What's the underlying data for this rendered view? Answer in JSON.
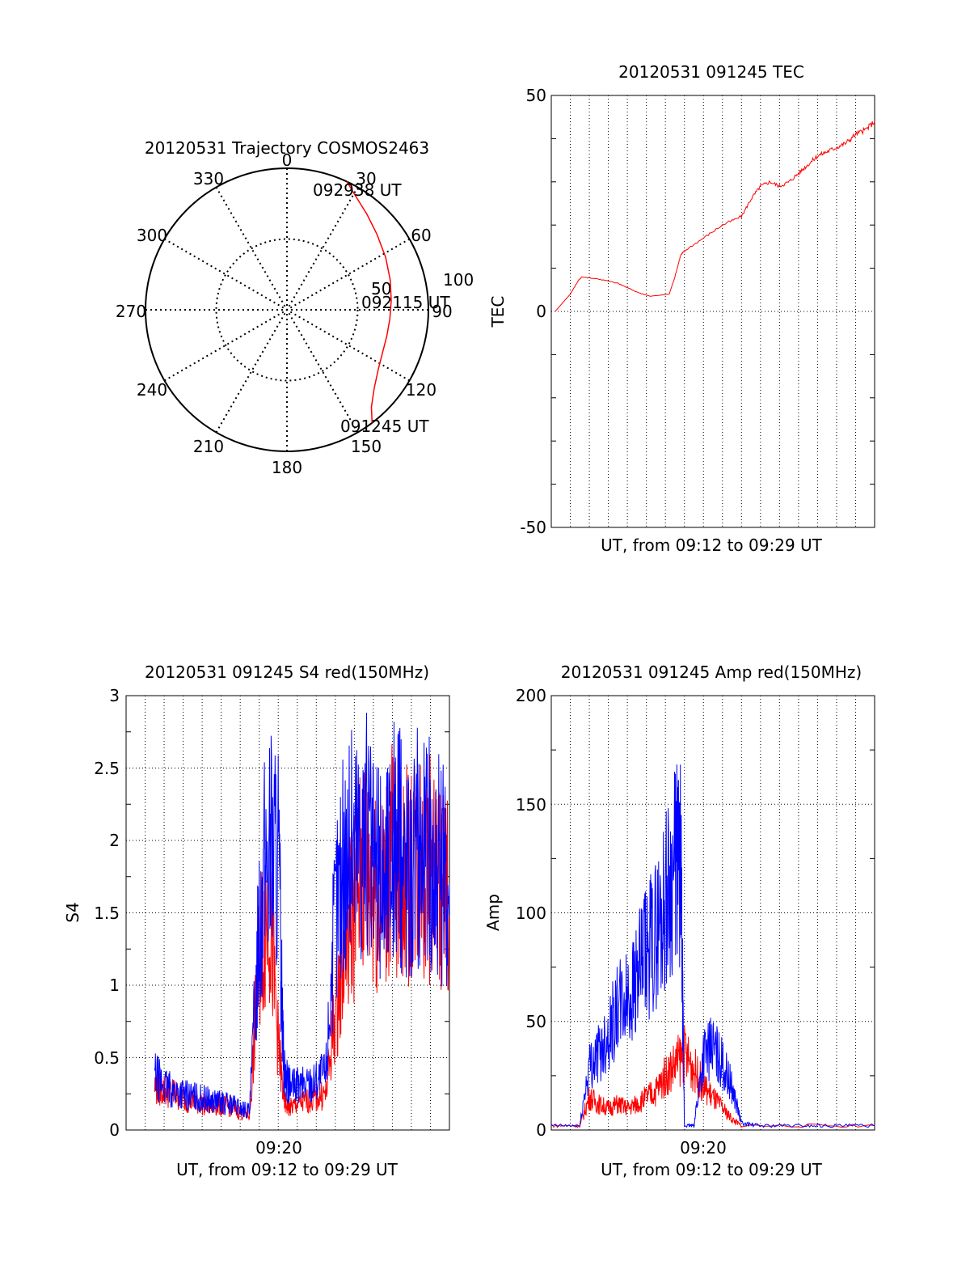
{
  "colors": {
    "red": "#ff0000",
    "blue": "#0000ff",
    "axis": "#000000",
    "grid": "#000000"
  },
  "chart_data": [
    {
      "type": "polar",
      "title": "20120531 Trajectory COSMOS2463",
      "azimuth_labels": [
        "0",
        "30",
        "60",
        "90",
        "120",
        "150",
        "180",
        "210",
        "240",
        "270",
        "300",
        "330"
      ],
      "radius_labels": [
        "50",
        "100"
      ],
      "rlim": [
        0,
        100
      ],
      "grid": true,
      "series": [
        {
          "color": "#ff0000",
          "azimuth_deg": [
            143,
            139,
            132,
            123,
            114,
            105,
            95,
            85,
            74,
            62,
            50,
            40,
            31,
            25
          ],
          "radius": [
            100,
            91,
            83,
            77,
            74,
            73,
            73,
            74,
            76,
            79,
            83,
            88,
            94,
            100
          ]
        }
      ],
      "annotations": [
        {
          "text": "092938 UT",
          "azimuth_deg": 25,
          "radius": 100
        },
        {
          "text": "092115 UT",
          "azimuth_deg": 90,
          "radius": 73
        },
        {
          "text": "091245 UT",
          "azimuth_deg": 143,
          "radius": 100
        }
      ]
    },
    {
      "type": "line",
      "title": "20120531 091245 TEC",
      "xlabel": "UT, from 09:12 to 09:29 UT",
      "ylabel": "TEC",
      "xlim": [
        0,
        17
      ],
      "ylim": [
        -50,
        50
      ],
      "yticks": [
        "50",
        "0",
        "-50"
      ],
      "grid": true,
      "series": [
        {
          "color": "#ff0000",
          "x": [
            0.2,
            0.6,
            1.0,
            1.4,
            1.6,
            2.5,
            3.5,
            4.5,
            5.2,
            6.2,
            6.5,
            6.8,
            7.0,
            8.0,
            9.0,
            10.0,
            10.5,
            11.0,
            11.5,
            12.0,
            12.5,
            13.0,
            13.5,
            14.0,
            14.5,
            15.0,
            15.5,
            16.0,
            16.5,
            17.0
          ],
          "y": [
            0,
            2,
            4,
            7,
            8,
            7.5,
            6.5,
            4.5,
            3.5,
            4,
            8,
            13,
            14,
            17,
            20,
            22,
            26,
            29,
            30,
            29,
            30,
            32,
            34,
            36,
            37,
            38,
            39,
            41,
            42,
            44
          ]
        }
      ]
    },
    {
      "type": "line",
      "title": "20120531 091245 S4 red(150MHz)",
      "xlabel": "UT, from 09:12 to 09:29 UT",
      "ylabel": "S4",
      "xlim": [
        0,
        17
      ],
      "ylim": [
        0,
        3
      ],
      "yticks": [
        "0",
        "0.5",
        "1",
        "1.5",
        "2",
        "2.5",
        "3"
      ],
      "xticks": [
        "09:20"
      ],
      "grid": true,
      "series": [
        {
          "color": "#ff0000",
          "x": [
            1.5,
            2.0,
            2.5,
            3.0,
            3.5,
            4.0,
            4.5,
            5.0,
            5.5,
            6.0,
            6.5,
            7.0,
            7.5,
            8.0,
            8.3,
            8.6,
            9.0,
            9.5,
            10.0,
            10.5,
            11.0,
            11.5,
            12.0,
            12.5,
            13.0,
            13.5,
            14.0,
            14.5,
            15.0,
            15.5,
            16.0,
            16.5,
            17.0
          ],
          "y": [
            0.3,
            0.28,
            0.25,
            0.22,
            0.2,
            0.18,
            0.17,
            0.17,
            0.16,
            0.12,
            0.1,
            1.2,
            1.6,
            0.6,
            0.2,
            0.15,
            0.18,
            0.2,
            0.22,
            0.25,
            0.8,
            1.3,
            1.6,
            1.8,
            1.7,
            1.6,
            1.9,
            1.7,
            1.8,
            1.9,
            1.8,
            1.7,
            1.6
          ]
        },
        {
          "color": "#0000ff",
          "x": [
            1.5,
            2.0,
            2.5,
            3.0,
            3.5,
            4.0,
            4.5,
            5.0,
            5.5,
            6.0,
            6.5,
            7.0,
            7.5,
            8.0,
            8.3,
            8.6,
            9.0,
            9.5,
            10.0,
            10.5,
            11.0,
            11.5,
            12.0,
            12.5,
            13.0,
            13.5,
            14.0,
            14.5,
            15.0,
            15.5,
            16.0,
            16.5,
            17.0
          ],
          "y": [
            0.38,
            0.3,
            0.27,
            0.25,
            0.23,
            0.22,
            0.2,
            0.19,
            0.18,
            0.15,
            0.13,
            1.5,
            2.0,
            1.9,
            0.4,
            0.3,
            0.3,
            0.32,
            0.35,
            0.4,
            1.5,
            1.9,
            2.0,
            2.1,
            1.8,
            1.7,
            2.0,
            1.9,
            1.8,
            2.0,
            1.9,
            1.8,
            1.7
          ]
        }
      ]
    },
    {
      "type": "line",
      "title": "20120531 091245 Amp red(150MHz)",
      "xlabel": "UT, from 09:12 to 09:29 UT",
      "ylabel": "Amp",
      "xlim": [
        0,
        17
      ],
      "ylim": [
        0,
        200
      ],
      "yticks": [
        "0",
        "50",
        "100",
        "150",
        "200"
      ],
      "xticks": [
        "09:20"
      ],
      "grid": true,
      "series": [
        {
          "color": "#ff0000",
          "x": [
            0,
            1.5,
            2.0,
            2.5,
            3.0,
            3.5,
            4.0,
            4.5,
            5.0,
            5.5,
            6.0,
            6.5,
            7.0,
            7.5,
            8.0,
            8.5,
            9.0,
            9.5,
            10.0,
            17.0
          ],
          "y": [
            2,
            2,
            15,
            12,
            10,
            12,
            10,
            12,
            15,
            18,
            25,
            30,
            35,
            28,
            20,
            15,
            10,
            5,
            2,
            2
          ]
        },
        {
          "color": "#0000ff",
          "x": [
            0,
            1.5,
            2.0,
            2.5,
            3.0,
            3.5,
            4.0,
            4.5,
            5.0,
            5.5,
            6.0,
            6.5,
            6.8,
            7.0,
            7.5,
            8.0,
            8.5,
            9.0,
            9.5,
            10.0,
            11.0,
            13.0,
            15.0,
            17.0
          ],
          "y": [
            2,
            2,
            30,
            35,
            45,
            55,
            60,
            70,
            80,
            90,
            105,
            120,
            125,
            2,
            2,
            35,
            38,
            30,
            20,
            3,
            2,
            2,
            2,
            2
          ]
        }
      ]
    }
  ]
}
